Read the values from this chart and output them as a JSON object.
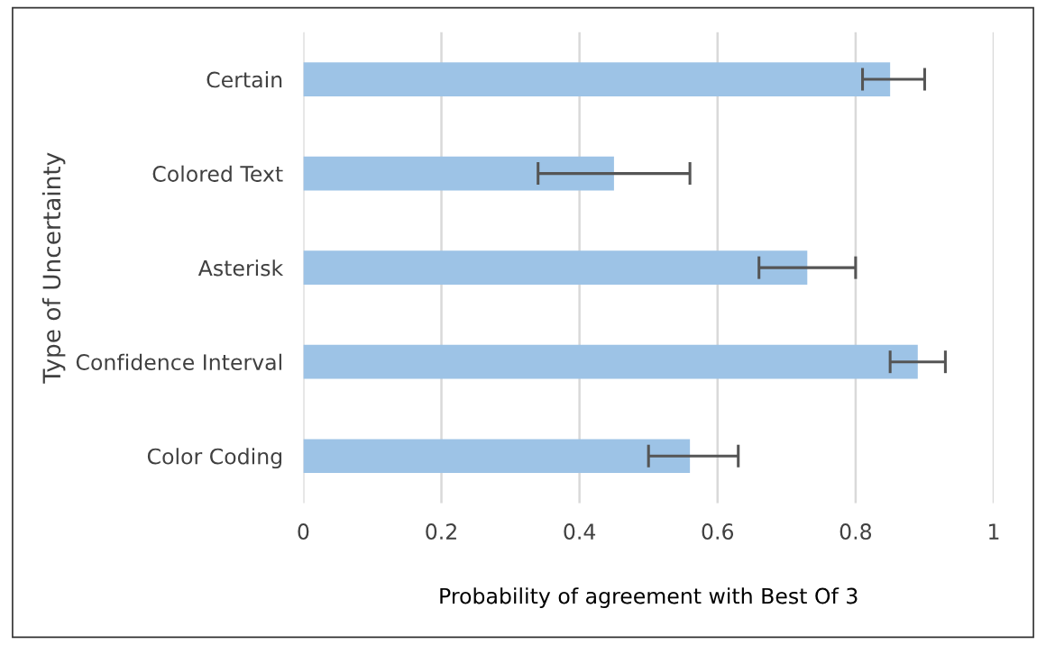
{
  "chart_data": {
    "type": "bar",
    "orientation": "horizontal",
    "xlabel": "Probability of agreement with Best Of 3",
    "ylabel": "Type of Uncertainty",
    "categories": [
      "Certain",
      "Colored Text",
      "Asterisk",
      "Confidence Interval",
      "Color Coding"
    ],
    "values": [
      0.85,
      0.45,
      0.73,
      0.89,
      0.56
    ],
    "errors": [
      [
        0.81,
        0.9
      ],
      [
        0.34,
        0.56
      ],
      [
        0.66,
        0.8
      ],
      [
        0.85,
        0.93
      ],
      [
        0.5,
        0.63
      ]
    ],
    "color": "#9dc3e6",
    "xlim": [
      0,
      1
    ],
    "xticks": [
      0,
      0.2,
      0.4,
      0.6,
      0.8,
      1
    ],
    "grid": "x"
  }
}
